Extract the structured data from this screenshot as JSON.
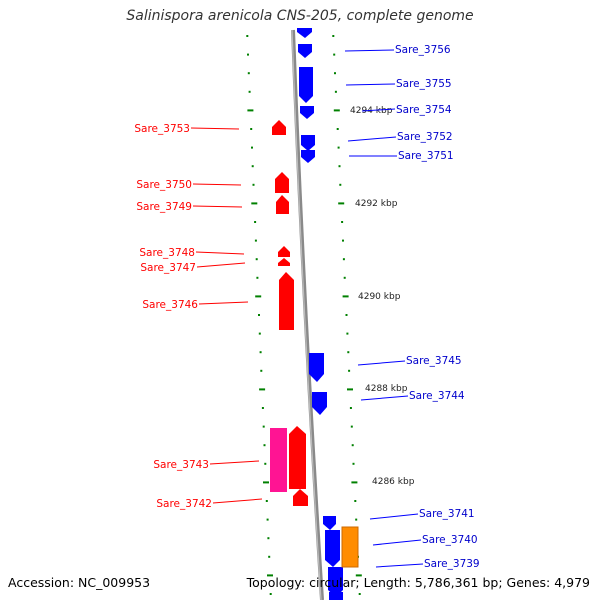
{
  "title": "Salinispora arenicola CNS-205, complete genome",
  "footer": {
    "accession": "Accession: NC_009953",
    "topology": "Topology: circular; Length: 5,786,361 bp; Genes: 4,979"
  },
  "colors": {
    "forward_gene": "#0000ff",
    "reverse_gene": "#ff0000",
    "rna_gene": "#ff1493",
    "other_gene": "#ff8c00",
    "tick": "#008000",
    "backbone": "#888888"
  },
  "scale_labels": [
    "4294 kbp",
    "4292 kbp",
    "4290 kbp",
    "4288 kbp",
    "4286 kbp"
  ],
  "left_genes": [
    {
      "name": "Sare_3753"
    },
    {
      "name": "Sare_3750"
    },
    {
      "name": "Sare_3749"
    },
    {
      "name": "Sare_3748"
    },
    {
      "name": "Sare_3747"
    },
    {
      "name": "Sare_3746"
    },
    {
      "name": "Sare_3743"
    },
    {
      "name": "Sare_3742"
    }
  ],
  "right_genes": [
    {
      "name": "Sare_3756"
    },
    {
      "name": "Sare_3755"
    },
    {
      "name": "Sare_3754"
    },
    {
      "name": "Sare_3752"
    },
    {
      "name": "Sare_3751"
    },
    {
      "name": "Sare_3745"
    },
    {
      "name": "Sare_3744"
    },
    {
      "name": "Sare_3741"
    },
    {
      "name": "Sare_3740"
    },
    {
      "name": "Sare_3739"
    }
  ]
}
